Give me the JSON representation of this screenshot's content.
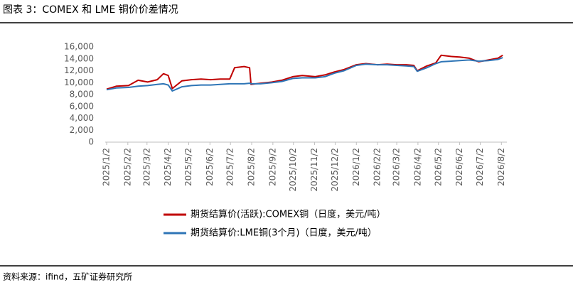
{
  "chart_data": {
    "type": "line",
    "title": "图表 3：COMEX 和 LME 铜价价差情况",
    "source": "资料来源：ifind，五矿证券研究所",
    "x": [
      "2025/1/2",
      "2025/1/16",
      "2025/2/3",
      "2025/2/17",
      "2025/3/3",
      "2025/3/17",
      "2025/3/26",
      "2025/4/2",
      "2025/4/8",
      "2025/4/22",
      "2025/5/6",
      "2025/5/20",
      "2025/6/3",
      "2025/6/17",
      "2025/7/1",
      "2025/7/8",
      "2025/7/22",
      "2025/7/30",
      "2025/8/1",
      "2025/8/15",
      "2025/9/1",
      "2025/9/15",
      "2025/10/1",
      "2025/10/15",
      "2025/11/3",
      "2025/11/17",
      "2025/12/1",
      "2025/12/15",
      "2026/1/2",
      "2026/1/16",
      "2026/2/2",
      "2026/2/16",
      "2026/3/2",
      "2026/3/16",
      "2026/3/27",
      "2026/4/1",
      "2026/4/15",
      "2026/4/28",
      "2026/5/6",
      "2026/5/20",
      "2026/6/2",
      "2026/6/16",
      "2026/6/30",
      "2026/7/14",
      "2026/7/28",
      "2026/8/4"
    ],
    "series": [
      {
        "name": "期货结算价(活跃):COMEX铜（日度，美元/吨）",
        "color": "#c00000",
        "values": [
          8900,
          9400,
          9500,
          10400,
          10100,
          10500,
          11500,
          11200,
          9000,
          10300,
          10500,
          10600,
          10500,
          10600,
          10600,
          12500,
          12700,
          12500,
          9700,
          9900,
          10100,
          10400,
          11000,
          11200,
          11000,
          11300,
          11800,
          12200,
          13000,
          13200,
          13000,
          13100,
          13000,
          13000,
          12900,
          12000,
          12800,
          13300,
          14600,
          14400,
          14300,
          14100,
          13500,
          13800,
          14100,
          14600
        ]
      },
      {
        "name": "期货结算价:LME铜(3个月)（日度，美元/吨）",
        "color": "#2e75b6",
        "values": [
          8800,
          9100,
          9200,
          9400,
          9500,
          9700,
          9800,
          9600,
          8600,
          9300,
          9500,
          9600,
          9600,
          9700,
          9800,
          9800,
          9800,
          9900,
          9800,
          9800,
          10000,
          10200,
          10700,
          10800,
          10800,
          11000,
          11600,
          12000,
          12900,
          13100,
          13000,
          13000,
          12900,
          12800,
          12700,
          11900,
          12500,
          13200,
          13500,
          13600,
          13700,
          13800,
          13600,
          13700,
          13900,
          14200
        ]
      }
    ],
    "xlim": [
      "2025/1/2",
      "2026/8/10"
    ],
    "xticks": [
      "2025/1/2",
      "2025/2/2",
      "2025/3/2",
      "2025/4/2",
      "2025/5/2",
      "2025/6/2",
      "2025/7/2",
      "2025/8/2",
      "2025/9/2",
      "2025/10/2",
      "2025/11/2",
      "2025/12/2",
      "2026/1/2",
      "2026/2/2",
      "2026/3/2",
      "2026/4/2",
      "2026/5/2",
      "2026/6/2",
      "2026/7/2",
      "2026/8/2"
    ],
    "ylim": [
      0,
      16000
    ],
    "yticks": [
      0,
      {
        "value": 2000,
        "label": "2,000"
      },
      {
        "value": 4000,
        "label": "4,000"
      },
      {
        "value": 6000,
        "label": "6,000"
      },
      {
        "value": 8000,
        "label": "8,000"
      },
      {
        "value": 10000,
        "label": "10,000"
      },
      {
        "value": 12000,
        "label": "12,000"
      },
      {
        "value": 14000,
        "label": "14,000"
      },
      {
        "value": 16000,
        "label": "16,000"
      }
    ],
    "legend": "bottom"
  }
}
